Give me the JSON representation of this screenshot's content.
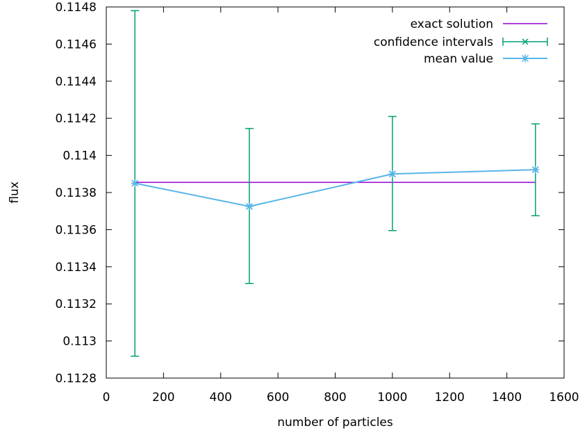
{
  "chart_data": {
    "type": "line",
    "xlabel": "number of particles",
    "ylabel": "flux",
    "xlim": [
      0,
      1600
    ],
    "ylim": [
      0.1128,
      0.1148
    ],
    "xticks": [
      0,
      200,
      400,
      600,
      800,
      1000,
      1200,
      1400,
      1600
    ],
    "xtick_labels": [
      "0",
      "200",
      "400",
      "600",
      "800",
      "1000",
      "1200",
      "1400",
      "1600"
    ],
    "yticks": [
      0.1128,
      0.113,
      0.1132,
      0.1134,
      0.1136,
      0.1138,
      0.114,
      0.1142,
      0.1144,
      0.1146,
      0.1148
    ],
    "ytick_labels": [
      "0.1128",
      "0.113",
      "0.1132",
      "0.1134",
      "0.1136",
      "0.1138",
      "0.114",
      "0.1142",
      "0.1144",
      "0.1146",
      "0.1148"
    ],
    "grid": false,
    "legend_position": "top-right",
    "series": [
      {
        "name": "exact solution",
        "kind": "line",
        "color": "#9400d3",
        "x": [
          100,
          1500
        ],
        "y": [
          0.113855,
          0.113855
        ]
      },
      {
        "name": "confidence intervals",
        "kind": "errorbar",
        "color": "#009e73",
        "x": [
          100,
          500,
          1000,
          1500
        ],
        "y": [
          0.11385,
          0.113725,
          0.1139,
          0.113923
        ],
        "lower": [
          0.112918,
          0.11331,
          0.113595,
          0.113675
        ],
        "upper": [
          0.11478,
          0.114145,
          0.11421,
          0.11417
        ]
      },
      {
        "name": "mean value",
        "kind": "line-marker",
        "color": "#56b4e9",
        "x": [
          100,
          500,
          1000,
          1500
        ],
        "y": [
          0.11385,
          0.113725,
          0.1139,
          0.113923
        ]
      }
    ]
  }
}
